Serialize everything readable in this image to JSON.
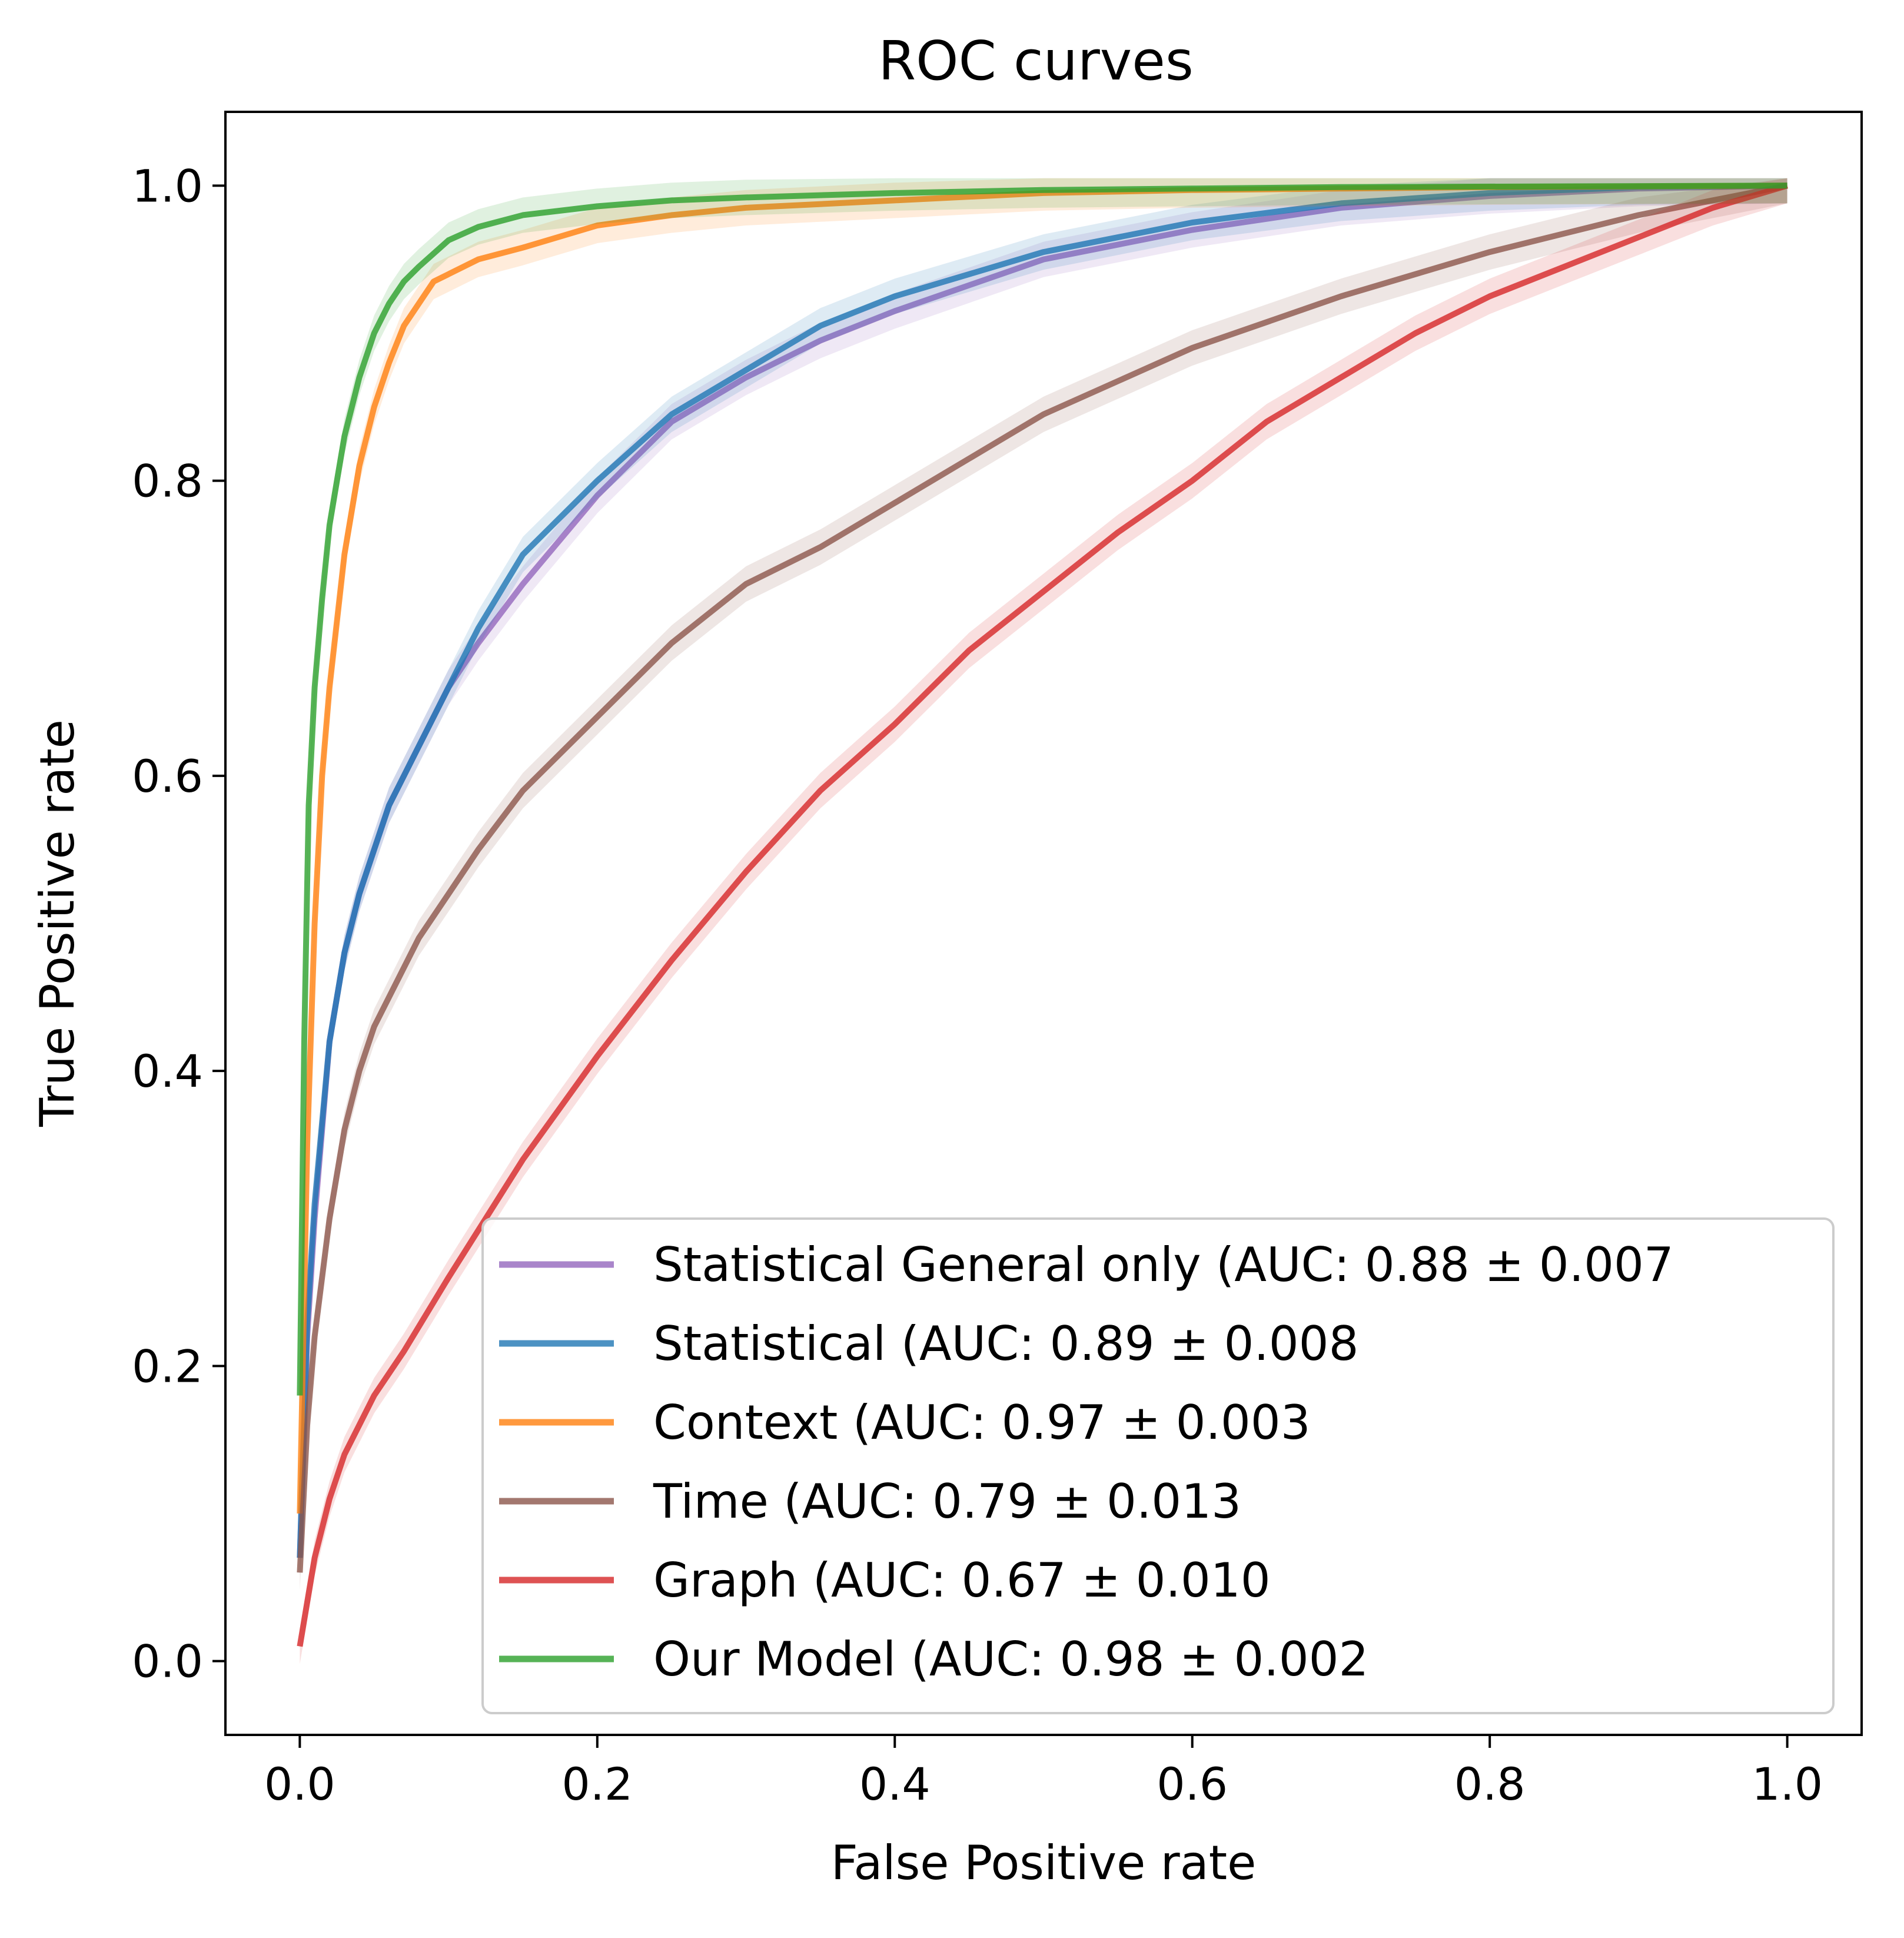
{
  "chart_data": {
    "type": "line",
    "title": "ROC curves",
    "xlabel": "False Positive rate",
    "ylabel": "True Positive rate",
    "xlim": [
      -0.05,
      1.05
    ],
    "ylim": [
      -0.05,
      1.05
    ],
    "xticks": [
      "0.0",
      "0.2",
      "0.4",
      "0.6",
      "0.8",
      "1.0"
    ],
    "yticks": [
      "0.0",
      "0.2",
      "0.4",
      "0.6",
      "0.8",
      "1.0"
    ],
    "grid": false,
    "legend_position": "lower-right",
    "series": [
      {
        "name": "Statistical General only (AUC: 0.88 ± 0.007",
        "color": "#9467bd",
        "x": [
          0.0,
          0.005,
          0.01,
          0.02,
          0.03,
          0.04,
          0.05,
          0.06,
          0.08,
          0.1,
          0.12,
          0.15,
          0.2,
          0.25,
          0.3,
          0.35,
          0.4,
          0.5,
          0.6,
          0.7,
          0.8,
          0.9,
          1.0
        ],
        "y": [
          0.07,
          0.22,
          0.3,
          0.42,
          0.48,
          0.52,
          0.55,
          0.58,
          0.62,
          0.66,
          0.69,
          0.73,
          0.79,
          0.84,
          0.87,
          0.895,
          0.915,
          0.95,
          0.97,
          0.985,
          0.993,
          0.998,
          1.0
        ]
      },
      {
        "name": "Statistical (AUC: 0.89 ± 0.008",
        "color": "#1f77b4",
        "x": [
          0.0,
          0.005,
          0.01,
          0.02,
          0.03,
          0.04,
          0.05,
          0.06,
          0.08,
          0.1,
          0.12,
          0.15,
          0.2,
          0.25,
          0.3,
          0.35,
          0.4,
          0.5,
          0.6,
          0.7,
          0.8,
          0.9,
          1.0
        ],
        "y": [
          0.07,
          0.23,
          0.31,
          0.42,
          0.48,
          0.52,
          0.55,
          0.58,
          0.62,
          0.66,
          0.7,
          0.75,
          0.8,
          0.845,
          0.875,
          0.905,
          0.925,
          0.955,
          0.975,
          0.988,
          0.995,
          0.999,
          1.0
        ]
      },
      {
        "name": "Context  (AUC: 0.97 ± 0.003",
        "color": "#ff7f0e",
        "x": [
          0.0,
          0.005,
          0.01,
          0.015,
          0.02,
          0.03,
          0.04,
          0.05,
          0.06,
          0.07,
          0.08,
          0.09,
          0.1,
          0.12,
          0.15,
          0.2,
          0.25,
          0.3,
          0.4,
          0.5,
          0.6,
          0.7,
          0.8,
          1.0
        ],
        "y": [
          0.1,
          0.35,
          0.5,
          0.6,
          0.66,
          0.75,
          0.81,
          0.85,
          0.88,
          0.905,
          0.92,
          0.935,
          0.94,
          0.95,
          0.958,
          0.973,
          0.98,
          0.985,
          0.99,
          0.995,
          0.997,
          0.998,
          0.999,
          1.0
        ]
      },
      {
        "name": "Time (AUC: 0.79 ± 0.013",
        "color": "#8c564b",
        "x": [
          0.0,
          0.005,
          0.01,
          0.02,
          0.03,
          0.04,
          0.05,
          0.06,
          0.08,
          0.1,
          0.12,
          0.15,
          0.2,
          0.25,
          0.3,
          0.35,
          0.4,
          0.45,
          0.5,
          0.6,
          0.7,
          0.8,
          0.9,
          1.0
        ],
        "y": [
          0.06,
          0.16,
          0.22,
          0.3,
          0.36,
          0.4,
          0.43,
          0.45,
          0.49,
          0.52,
          0.55,
          0.59,
          0.64,
          0.69,
          0.73,
          0.755,
          0.785,
          0.815,
          0.845,
          0.89,
          0.925,
          0.955,
          0.98,
          1.0
        ]
      },
      {
        "name": "Graph (AUC: 0.67 ± 0.010",
        "color": "#d62728",
        "x": [
          0.0,
          0.01,
          0.02,
          0.03,
          0.05,
          0.07,
          0.1,
          0.15,
          0.2,
          0.25,
          0.3,
          0.35,
          0.4,
          0.45,
          0.5,
          0.55,
          0.6,
          0.65,
          0.7,
          0.75,
          0.8,
          0.85,
          0.9,
          0.95,
          1.0
        ],
        "y": [
          0.01,
          0.07,
          0.11,
          0.14,
          0.18,
          0.21,
          0.26,
          0.34,
          0.41,
          0.475,
          0.535,
          0.59,
          0.635,
          0.685,
          0.725,
          0.765,
          0.8,
          0.84,
          0.87,
          0.9,
          0.925,
          0.945,
          0.965,
          0.985,
          1.0
        ]
      },
      {
        "name": "Our Model (AUC: 0.98 ± 0.002",
        "color": "#2ca02c",
        "x": [
          0.0,
          0.003,
          0.006,
          0.01,
          0.015,
          0.02,
          0.025,
          0.03,
          0.04,
          0.05,
          0.06,
          0.07,
          0.08,
          0.1,
          0.12,
          0.15,
          0.2,
          0.25,
          0.3,
          0.4,
          0.5,
          0.6,
          0.7,
          1.0
        ],
        "y": [
          0.18,
          0.42,
          0.58,
          0.66,
          0.72,
          0.77,
          0.8,
          0.83,
          0.87,
          0.9,
          0.92,
          0.935,
          0.945,
          0.963,
          0.972,
          0.98,
          0.986,
          0.99,
          0.992,
          0.995,
          0.997,
          0.998,
          0.999,
          1.0
        ]
      }
    ]
  }
}
